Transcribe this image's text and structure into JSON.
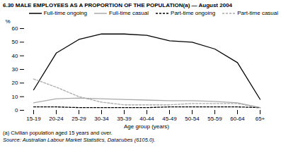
{
  "chart_data": {
    "type": "line",
    "title": "6.30 MALE EMPLOYEES AS A PROPORTION OF THE POPULATION(a) — August 2004",
    "xlabel": "Age group (years)",
    "ylabel": "%",
    "annotations": [
      "(a) Civilian population aged 15 years and over.",
      "Source: Australian Labour Market Statistics, Datacubes (6105.0)."
    ],
    "categories": [
      "15-19",
      "20-24",
      "25-29",
      "30-34",
      "35-39",
      "40-44",
      "45-49",
      "50-54",
      "55-59",
      "60-64",
      "65+"
    ],
    "series": [
      {
        "name": "Full-time ongoing",
        "color": "#000000",
        "line_style": "solid",
        "values": [
          15,
          42,
          52,
          56,
          56,
          55,
          51,
          50,
          45,
          35,
          8
        ]
      },
      {
        "name": "Full-time casual",
        "color": "#aaaaaa",
        "line_style": "solid",
        "values": [
          5.5,
          8.5,
          9,
          8.5,
          8,
          7.5,
          7,
          7,
          6.5,
          5.5,
          2
        ]
      },
      {
        "name": "Part-time ongoing",
        "color": "#000000",
        "line_style": "dashed",
        "values": [
          2.5,
          2.5,
          2,
          2,
          2,
          2,
          2.5,
          2.5,
          2.5,
          2.5,
          2
        ]
      },
      {
        "name": "Part-time casual",
        "color": "#aaaaaa",
        "line_style": "dashed",
        "values": [
          23,
          17,
          10,
          6,
          4,
          4,
          4,
          5,
          5,
          5,
          2
        ]
      }
    ],
    "ylim": [
      0,
      60
    ],
    "yticks": [
      0,
      10,
      20,
      30,
      40,
      50,
      60
    ],
    "grid": false
  }
}
